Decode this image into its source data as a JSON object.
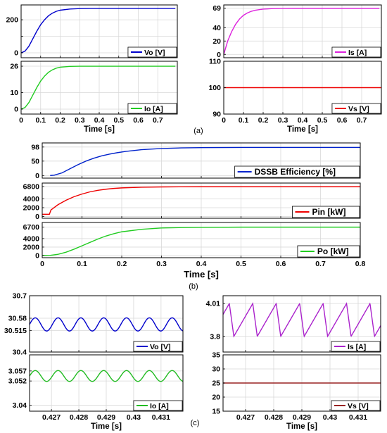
{
  "figure_labels": [
    "(a)",
    "(b)",
    "(c)"
  ],
  "chart_data": [
    {
      "id": "a1",
      "type": "line",
      "xlabel": "",
      "legend": "Vo [V]",
      "color": "#0000cc",
      "xlim": [
        0,
        0.8
      ],
      "ylim": [
        -30,
        290
      ],
      "yticks": [
        0,
        100,
        200
      ],
      "ytick_labels": [
        "0",
        "",
        "200"
      ],
      "xticks": [
        0,
        0.1,
        0.2,
        0.3,
        0.4,
        0.5,
        0.6,
        0.7
      ],
      "xtick_labels": [],
      "series": [
        {
          "name": "Vo [V]",
          "x": [
            0,
            0.02,
            0.04,
            0.06,
            0.08,
            0.1,
            0.12,
            0.14,
            0.16,
            0.18,
            0.2,
            0.25,
            0.3,
            0.35,
            0.4,
            0.5,
            0.6,
            0.7,
            0.79
          ],
          "y": [
            0,
            10,
            40,
            85,
            130,
            170,
            200,
            224,
            240,
            251,
            258,
            265,
            268,
            269,
            269,
            269,
            269,
            269,
            269
          ]
        }
      ]
    },
    {
      "id": "a2",
      "type": "line",
      "xlabel": "Time [s]",
      "legend": "Io [A]",
      "color": "#22cc22",
      "xlim": [
        0,
        0.8
      ],
      "ylim": [
        -3,
        29
      ],
      "yticks": [
        0,
        10,
        26
      ],
      "ytick_labels": [
        "0",
        "10",
        "26"
      ],
      "xticks": [
        0,
        0.1,
        0.2,
        0.3,
        0.4,
        0.5,
        0.6,
        0.7
      ],
      "xtick_labels": [
        "0",
        "0.1",
        "0.2",
        "0.3",
        "0.4",
        "0.5",
        "0.6",
        "0.7"
      ],
      "series": [
        {
          "name": "Io [A]",
          "x": [
            0,
            0.02,
            0.04,
            0.06,
            0.08,
            0.1,
            0.12,
            0.14,
            0.16,
            0.18,
            0.2,
            0.25,
            0.3,
            0.35,
            0.4,
            0.5,
            0.6,
            0.7,
            0.79
          ],
          "y": [
            0,
            1,
            4,
            8.5,
            13,
            17,
            20,
            22.3,
            23.8,
            24.8,
            25.4,
            25.9,
            26,
            26,
            26,
            26,
            26,
            26,
            26
          ]
        }
      ]
    },
    {
      "id": "a3",
      "type": "line",
      "xlabel": "",
      "legend": "Is [A]",
      "color": "#dd22dd",
      "xlim": [
        0,
        0.8
      ],
      "ylim": [
        -5,
        74
      ],
      "yticks": [
        0,
        20,
        40,
        69
      ],
      "ytick_labels": [
        "0",
        "20",
        "40",
        "69"
      ],
      "xticks": [
        0,
        0.1,
        0.2,
        0.3,
        0.4,
        0.5,
        0.6,
        0.7
      ],
      "xtick_labels": [],
      "series": [
        {
          "name": "Is [A]",
          "x": [
            0,
            0.01,
            0.02,
            0.04,
            0.06,
            0.08,
            0.1,
            0.12,
            0.14,
            0.16,
            0.18,
            0.2,
            0.25,
            0.3,
            0.35,
            0.4,
            0.5,
            0.6,
            0.7,
            0.79
          ],
          "y": [
            0,
            10,
            20,
            34,
            45,
            53,
            58.5,
            62,
            64.5,
            66,
            67,
            67.7,
            68.5,
            68.8,
            69,
            69,
            69,
            69,
            69,
            69
          ]
        }
      ]
    },
    {
      "id": "a4",
      "type": "line",
      "xlabel": "Time [s]",
      "legend": "Vs [V]",
      "color": "#ee0000",
      "xlim": [
        0,
        0.8
      ],
      "ylim": [
        90,
        110
      ],
      "yticks": [
        90,
        100,
        110
      ],
      "ytick_labels": [
        "90",
        "100",
        "110"
      ],
      "xticks": [
        0,
        0.1,
        0.2,
        0.3,
        0.4,
        0.5,
        0.6,
        0.7
      ],
      "xtick_labels": [
        "0",
        "0.1",
        "0.2",
        "0.3",
        "0.4",
        "0.5",
        "0.6",
        "0.7"
      ],
      "series": [
        {
          "name": "Vs [V]",
          "x": [
            0,
            0.8
          ],
          "y": [
            100,
            100
          ]
        }
      ]
    },
    {
      "id": "b1",
      "type": "line",
      "xlabel": "",
      "legend": "DSSB Efficiency [%]",
      "color": "#0022cc",
      "xlim": [
        0,
        0.8
      ],
      "ylim": [
        -8,
        112
      ],
      "yticks": [
        0,
        50,
        98
      ],
      "ytick_labels": [
        "0",
        "50",
        "98"
      ],
      "xticks": [
        0,
        0.1,
        0.2,
        0.3,
        0.4,
        0.5,
        0.6,
        0.7,
        0.8
      ],
      "xtick_labels": [],
      "series": [
        {
          "name": "DSSB Efficiency [%]",
          "x": [
            0.02,
            0.03,
            0.05,
            0.07,
            0.09,
            0.11,
            0.13,
            0.15,
            0.17,
            0.19,
            0.21,
            0.25,
            0.3,
            0.35,
            0.4,
            0.5,
            0.6,
            0.7,
            0.8
          ],
          "y": [
            1,
            2,
            10,
            24,
            38,
            50,
            60,
            68,
            74,
            79,
            83,
            89,
            93,
            95,
            96,
            96.5,
            96.5,
            96.5,
            96.5
          ]
        }
      ]
    },
    {
      "id": "b2",
      "type": "line",
      "xlabel": "",
      "legend": "Pin [kW]",
      "color": "#ee0000",
      "xlim": [
        0,
        0.8
      ],
      "ylim": [
        -400,
        7600
      ],
      "yticks": [
        0,
        2000,
        4000,
        6800
      ],
      "ytick_labels": [
        "0",
        "2000",
        "4000",
        "6800"
      ],
      "xticks": [
        0,
        0.1,
        0.2,
        0.3,
        0.4,
        0.5,
        0.6,
        0.7,
        0.8
      ],
      "xtick_labels": [],
      "series": [
        {
          "name": "Pin [kW]",
          "x": [
            0,
            0.018,
            0.02,
            0.022,
            0.04,
            0.06,
            0.08,
            0.1,
            0.12,
            0.14,
            0.16,
            0.18,
            0.2,
            0.25,
            0.3,
            0.35,
            0.4,
            0.5,
            0.6,
            0.7,
            0.8
          ],
          "y": [
            500,
            500,
            1000,
            1500,
            2700,
            3700,
            4500,
            5100,
            5600,
            5950,
            6200,
            6380,
            6500,
            6650,
            6720,
            6750,
            6760,
            6760,
            6760,
            6760,
            6760
          ]
        }
      ]
    },
    {
      "id": "b3",
      "type": "line",
      "xlabel": "Time [s]",
      "legend": "Po [kW]",
      "color": "#22cc22",
      "xlim": [
        0,
        0.8
      ],
      "ylim": [
        -500,
        7800
      ],
      "yticks": [
        0,
        2000,
        4000,
        6700
      ],
      "ytick_labels": [
        "0",
        "2000",
        "4000",
        "6700"
      ],
      "xticks": [
        0,
        0.1,
        0.2,
        0.3,
        0.4,
        0.5,
        0.6,
        0.7,
        0.8
      ],
      "xtick_labels": [
        "0",
        "0.1",
        "0.2",
        "0.3",
        "0.4",
        "0.5",
        "0.6",
        "0.7",
        "0.8"
      ],
      "series": [
        {
          "name": "Po [kW]",
          "x": [
            0,
            0.02,
            0.04,
            0.06,
            0.08,
            0.1,
            0.12,
            0.14,
            0.16,
            0.18,
            0.2,
            0.25,
            0.3,
            0.35,
            0.4,
            0.5,
            0.6,
            0.7,
            0.8
          ],
          "y": [
            0,
            50,
            300,
            800,
            1500,
            2300,
            3100,
            3900,
            4600,
            5150,
            5600,
            6200,
            6500,
            6600,
            6650,
            6700,
            6700,
            6700,
            6700
          ]
        }
      ]
    },
    {
      "id": "c1",
      "type": "line",
      "xlabel": "",
      "legend": "Vo [V]",
      "color": "#0000cc",
      "xlim": [
        0.4262,
        0.4318
      ],
      "ylim": [
        30.4,
        30.7
      ],
      "yticks": [
        30.4,
        30.515,
        30.58,
        30.7
      ],
      "ytick_labels": [
        "30.4",
        "30.515",
        "30.58",
        "30.7"
      ],
      "xticks": [
        0.427,
        0.428,
        0.429,
        0.43,
        0.431
      ],
      "xtick_labels": [],
      "wave": {
        "kind": "sine",
        "mean": 30.547,
        "amp": 0.035,
        "period": 0.000833,
        "phase": 0.0
      },
      "series": [
        {
          "name": "Vo [V]"
        }
      ]
    },
    {
      "id": "c2",
      "type": "line",
      "xlabel": "Time [s]",
      "legend": "Io [A]",
      "color": "#22bb22",
      "xlim": [
        0.4262,
        0.4318
      ],
      "ylim": [
        3.037,
        3.065
      ],
      "yticks": [
        3.04,
        3.052,
        3.057
      ],
      "ytick_labels": [
        "3.04",
        "3.052",
        "3.057"
      ],
      "xticks": [
        0.427,
        0.428,
        0.429,
        0.43,
        0.431
      ],
      "xtick_labels": [
        "0.427",
        "0.428",
        "0.429",
        "0.43",
        "0.431"
      ],
      "wave": {
        "kind": "sine",
        "mean": 3.0545,
        "amp": 0.0027,
        "period": 0.000833,
        "phase": 0.0
      },
      "series": [
        {
          "name": "Io [A]"
        }
      ]
    },
    {
      "id": "c3",
      "type": "line",
      "xlabel": "",
      "legend": "Is [A]",
      "color": "#aa22cc",
      "xlim": [
        0.4262,
        0.4318
      ],
      "ylim": [
        3.7,
        4.06
      ],
      "yticks": [
        3.8,
        4.01
      ],
      "ytick_labels": [
        "3.8",
        "4.01"
      ],
      "xticks": [
        0.427,
        0.428,
        0.429,
        0.43,
        0.431
      ],
      "xtick_labels": [],
      "wave": {
        "kind": "saw",
        "low": 3.8,
        "high": 4.01,
        "period": 0.000833,
        "fall": 0.00016,
        "phase": 0.00045
      },
      "series": [
        {
          "name": "Is [A]"
        }
      ]
    },
    {
      "id": "c4",
      "type": "line",
      "xlabel": "Time [s]",
      "legend": "Vs [V]",
      "color": "#992222",
      "xlim": [
        0.4262,
        0.4318
      ],
      "ylim": [
        15,
        35
      ],
      "yticks": [
        15,
        20,
        25,
        30,
        35
      ],
      "ytick_labels": [
        "15",
        "20",
        "25",
        "30",
        "35"
      ],
      "xticks": [
        0.427,
        0.428,
        0.429,
        0.43,
        0.431
      ],
      "xtick_labels": [
        "0.427",
        "0.428",
        "0.429",
        "0.43",
        "0.431"
      ],
      "series": [
        {
          "name": "Vs [V]",
          "x": [
            0.4262,
            0.4318
          ],
          "y": [
            25,
            25
          ]
        }
      ]
    }
  ]
}
